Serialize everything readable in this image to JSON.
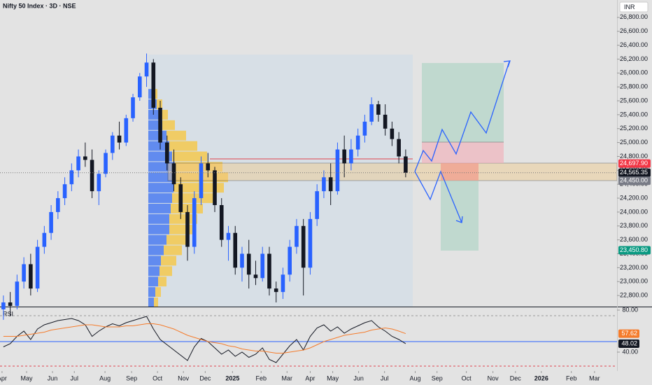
{
  "chart_data": [
    {
      "type": "candlestick",
      "title": "Nifty 50 Index · 3D · NSE",
      "currency": "INR",
      "x": [
        0,
        1,
        2,
        3,
        4,
        5,
        6,
        7,
        8,
        9,
        10,
        11,
        12,
        13,
        14,
        15,
        16,
        17,
        18,
        19,
        20,
        21,
        22,
        23,
        24,
        25,
        26,
        27,
        28,
        29,
        30,
        31,
        32,
        33,
        34,
        35,
        36,
        37,
        38,
        39,
        40,
        41,
        42,
        43,
        44,
        45,
        46,
        47,
        48,
        49,
        50,
        51,
        52,
        53,
        54,
        55,
        56,
        57,
        58,
        59
      ],
      "open": [
        22600,
        22700,
        22650,
        23000,
        23250,
        22900,
        23500,
        23700,
        24000,
        24200,
        24400,
        24600,
        24800,
        24750,
        24300,
        24550,
        24850,
        25100,
        25000,
        25350,
        25650,
        25950,
        26150,
        25500,
        25000,
        24700,
        24400,
        24000,
        23500,
        24200,
        24700,
        24600,
        24100,
        23600,
        23700,
        23200,
        23400,
        23100,
        23050,
        23400,
        22900,
        22850,
        23100,
        23500,
        23800,
        23200,
        23900,
        24300,
        24500,
        24300,
        24900,
        24700,
        24900,
        25100,
        25300,
        25550,
        25400,
        25200,
        25050,
        24800
      ],
      "high": [
        22800,
        22850,
        23100,
        23350,
        23400,
        23600,
        23800,
        24100,
        24300,
        24500,
        24700,
        24900,
        25000,
        24900,
        24600,
        24900,
        25150,
        25300,
        25400,
        25700,
        26000,
        26280,
        26200,
        25600,
        25100,
        24900,
        24500,
        24100,
        24300,
        24800,
        24850,
        24650,
        24200,
        23800,
        23800,
        23500,
        23600,
        23300,
        23500,
        23500,
        23000,
        23200,
        23600,
        23900,
        23900,
        24000,
        24400,
        24600,
        24700,
        25000,
        25100,
        25050,
        25200,
        25400,
        25650,
        25600,
        25550,
        25300,
        25150,
        24900
      ],
      "low": [
        22450,
        22500,
        22600,
        22900,
        22800,
        22850,
        23400,
        23600,
        23900,
        24100,
        24300,
        24500,
        24650,
        24200,
        24100,
        24500,
        24750,
        24900,
        24950,
        25300,
        25600,
        25800,
        25400,
        24900,
        24600,
        24300,
        23900,
        23300,
        23400,
        24100,
        24500,
        24000,
        23500,
        23300,
        23100,
        23000,
        22900,
        22950,
        23000,
        22800,
        22700,
        22750,
        23000,
        23400,
        22800,
        23100,
        23800,
        24200,
        24100,
        24250,
        24500,
        24600,
        24800,
        25000,
        25250,
        25300,
        25100,
        24950,
        24700,
        24500
      ],
      "close": [
        22700,
        22650,
        23000,
        23250,
        22900,
        23500,
        23700,
        24000,
        24200,
        24400,
        24600,
        24800,
        24750,
        24300,
        24550,
        24850,
        25100,
        25000,
        25350,
        25650,
        25950,
        26150,
        25500,
        25000,
        24700,
        24400,
        24000,
        23500,
        24200,
        24700,
        24600,
        24100,
        23600,
        23700,
        23200,
        23400,
        23100,
        23050,
        23400,
        22900,
        22850,
        23100,
        23500,
        23800,
        23200,
        23900,
        24300,
        24500,
        24300,
        24900,
        24700,
        24900,
        25100,
        25300,
        25550,
        25400,
        25200,
        25050,
        24800,
        24565.35
      ],
      "up_color": "#2962ff",
      "down_color": "#131722",
      "xlim": [
        -0.5,
        90
      ],
      "xticks": [
        {
          "value": -0.2,
          "label": "Apr"
        },
        {
          "value": 3.4,
          "label": "May"
        },
        {
          "value": 7.2,
          "label": "Jun"
        },
        {
          "value": 10.4,
          "label": "Jul"
        },
        {
          "value": 14.9,
          "label": "Aug"
        },
        {
          "value": 18.8,
          "label": "Sep"
        },
        {
          "value": 22.6,
          "label": "Oct"
        },
        {
          "value": 26.4,
          "label": "Nov"
        },
        {
          "value": 29.6,
          "label": "Dec"
        },
        {
          "value": 33.6,
          "label": "2025"
        },
        {
          "value": 37.8,
          "label": "Feb"
        },
        {
          "value": 41.6,
          "label": "Mar"
        },
        {
          "value": 45,
          "label": "Apr"
        },
        {
          "value": 48.3,
          "label": "May"
        },
        {
          "value": 52.1,
          "label": "Jun"
        },
        {
          "value": 55.9,
          "label": "Jul"
        },
        {
          "value": 60.4,
          "label": "Aug"
        },
        {
          "value": 63.6,
          "label": "Sep"
        },
        {
          "value": 67.9,
          "label": "Oct"
        },
        {
          "value": 71.8,
          "label": "Nov"
        },
        {
          "value": 75.1,
          "label": "Dec"
        },
        {
          "value": 78.9,
          "label": "2026"
        },
        {
          "value": 83.3,
          "label": "Feb"
        },
        {
          "value": 86.7,
          "label": "Mar"
        }
      ],
      "ylim": [
        22640,
        27050
      ],
      "yticks": [
        {
          "value": 22800,
          "label": "22,800.00"
        },
        {
          "value": 23000,
          "label": "23,000.00"
        },
        {
          "value": 23200,
          "label": "23,200.00"
        },
        {
          "value": 23400,
          "label": "23,400.00"
        },
        {
          "value": 23600,
          "label": "23,600.00"
        },
        {
          "value": 23800,
          "label": "23,800.00"
        },
        {
          "value": 24000,
          "label": "24,000.00"
        },
        {
          "value": 24200,
          "label": "24,200.00"
        },
        {
          "value": 24400,
          "label": "24,400.00"
        },
        {
          "value": 24600,
          "label": "24,600.00"
        },
        {
          "value": 24800,
          "label": "24,800.00"
        },
        {
          "value": 25000,
          "label": "25,000.00"
        },
        {
          "value": 25200,
          "label": "25,200.00"
        },
        {
          "value": 25400,
          "label": "25,400.00"
        },
        {
          "value": 25600,
          "label": "25,600.00"
        },
        {
          "value": 25800,
          "label": "25,800.00"
        },
        {
          "value": 26000,
          "label": "26,000.00"
        },
        {
          "value": 26200,
          "label": "26,200.00"
        },
        {
          "value": 26400,
          "label": "26,400.00"
        },
        {
          "value": 26600,
          "label": "26,600.00"
        },
        {
          "value": 26800,
          "label": "26,800.00"
        }
      ],
      "price_labels": [
        {
          "value": 24697.9,
          "label": "24,697.90",
          "color": "#f23645"
        },
        {
          "value": 24565.35,
          "label": "24,565.35",
          "color": "#131722"
        },
        {
          "value": 24450,
          "label": "24,450.00",
          "color": "#787b86"
        },
        {
          "value": 23450.8,
          "label": "23,450.80",
          "color": "#089981"
        }
      ],
      "volume_profile": {
        "levels": [
          22700,
          22850,
          23000,
          23150,
          23300,
          23450,
          23600,
          23750,
          23900,
          24050,
          24200,
          24350,
          24500,
          24650,
          24800,
          24950,
          25100,
          25250,
          25400,
          25550,
          25700
        ],
        "up": [
          8,
          10,
          14,
          16,
          18,
          22,
          26,
          30,
          30,
          32,
          34,
          36,
          36,
          38,
          34,
          30,
          26,
          20,
          16,
          12,
          8
        ],
        "down": [
          6,
          8,
          12,
          18,
          22,
          26,
          30,
          34,
          40,
          46,
          60,
          72,
          78,
          68,
          50,
          40,
          28,
          18,
          12,
          8,
          5
        ],
        "up_color": "#4c7cf0",
        "down_color": "#f5c94e"
      }
    },
    {
      "type": "line",
      "title": "RSI",
      "x": [
        0,
        1,
        2,
        3,
        4,
        5,
        6,
        7,
        8,
        9,
        10,
        11,
        12,
        13,
        14,
        15,
        16,
        17,
        18,
        19,
        20,
        21,
        22,
        23,
        24,
        25,
        26,
        27,
        28,
        29,
        30,
        31,
        32,
        33,
        34,
        35,
        36,
        37,
        38,
        39,
        40,
        41,
        42,
        43,
        44,
        45,
        46,
        47,
        48,
        49,
        50,
        51,
        52,
        53,
        54,
        55,
        56,
        57,
        58,
        59
      ],
      "series": [
        {
          "color": "#131722",
          "values": [
            45,
            48,
            55,
            60,
            52,
            62,
            66,
            68,
            70,
            71,
            72,
            70,
            66,
            55,
            60,
            64,
            67,
            65,
            68,
            70,
            72,
            74,
            62,
            52,
            47,
            42,
            37,
            32,
            45,
            53,
            50,
            44,
            38,
            42,
            36,
            40,
            35,
            38,
            44,
            33,
            30,
            38,
            46,
            52,
            42,
            55,
            63,
            66,
            60,
            64,
            58,
            62,
            65,
            68,
            70,
            64,
            60,
            55,
            52,
            48.02
          ]
        },
        {
          "color": "#f57c2c",
          "values": [
            55,
            55,
            55,
            56,
            57,
            58,
            59,
            61,
            62,
            63,
            64,
            65,
            66,
            66,
            65,
            64,
            64,
            64,
            65,
            65,
            66,
            67,
            67,
            66,
            64,
            62,
            59,
            56,
            54,
            52,
            50,
            49,
            48,
            46,
            45,
            43,
            42,
            41,
            41,
            40,
            39,
            39,
            40,
            41,
            42,
            44,
            47,
            50,
            52,
            54,
            56,
            57,
            58,
            59,
            61,
            62,
            63,
            62,
            60,
            57.62
          ]
        }
      ],
      "ylim": [
        22,
        82
      ],
      "yticks": [
        {
          "value": 40,
          "label": "40.00"
        },
        {
          "value": 80,
          "label": "80.00"
        }
      ],
      "last_labels": [
        {
          "value": 57.62,
          "label": "57.62",
          "color": "#f57c2c"
        },
        {
          "value": 48.02,
          "label": "48.02",
          "color": "#131722"
        }
      ]
    }
  ]
}
